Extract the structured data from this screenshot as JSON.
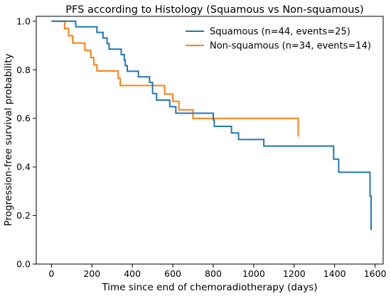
{
  "chart_data": {
    "type": "line",
    "title": "PFS according to Histology (Squamous vs Non-squamous)",
    "xlabel": "Time since end of chemoradiotherapy (days)",
    "ylabel": "Progression-free survival probability",
    "xlim": [
      -75,
      1640
    ],
    "ylim": [
      0.0,
      1.02
    ],
    "xticks": [
      0,
      200,
      400,
      600,
      800,
      1000,
      1200,
      1400,
      1600
    ],
    "xtick_labels": [
      "0",
      "200",
      "400",
      "600",
      "800",
      "1000",
      "1200",
      "1400",
      "1600"
    ],
    "yticks": [
      0.0,
      0.2,
      0.4,
      0.6,
      0.8,
      1.0
    ],
    "ytick_labels": [
      "0.0",
      "0.2",
      "0.4",
      "0.6",
      "0.8",
      "1.0"
    ],
    "grid": false,
    "legend_position": "top-right",
    "series": [
      {
        "name": "Squamous (n=44, events=25)",
        "color": "#1f77b4",
        "x": [
          0,
          120,
          225,
          255,
          275,
          285,
          300,
          345,
          360,
          365,
          375,
          430,
          485,
          500,
          520,
          560,
          585,
          615,
          635,
          725,
          800,
          805,
          890,
          925,
          1050,
          1375,
          1395,
          1420,
          1565,
          1575,
          1580
        ],
        "y": [
          1.0,
          0.977,
          0.954,
          0.931,
          0.908,
          0.885,
          0.885,
          0.862,
          0.839,
          0.817,
          0.794,
          0.771,
          0.748,
          0.702,
          0.675,
          0.675,
          0.648,
          0.621,
          0.621,
          0.621,
          0.594,
          0.567,
          0.54,
          0.513,
          0.486,
          0.486,
          0.432,
          0.378,
          0.378,
          0.28,
          0.14
        ]
      },
      {
        "name": "Non-squamous (n=34, events=14)",
        "color": "#ff7f0e",
        "x": [
          0,
          65,
          85,
          105,
          165,
          195,
          210,
          225,
          330,
          340,
          480,
          560,
          600,
          630,
          700,
          1220
        ],
        "y": [
          1.0,
          0.97,
          0.94,
          0.91,
          0.88,
          0.85,
          0.82,
          0.795,
          0.765,
          0.735,
          0.735,
          0.7,
          0.67,
          0.635,
          0.6,
          0.525
        ]
      }
    ]
  }
}
